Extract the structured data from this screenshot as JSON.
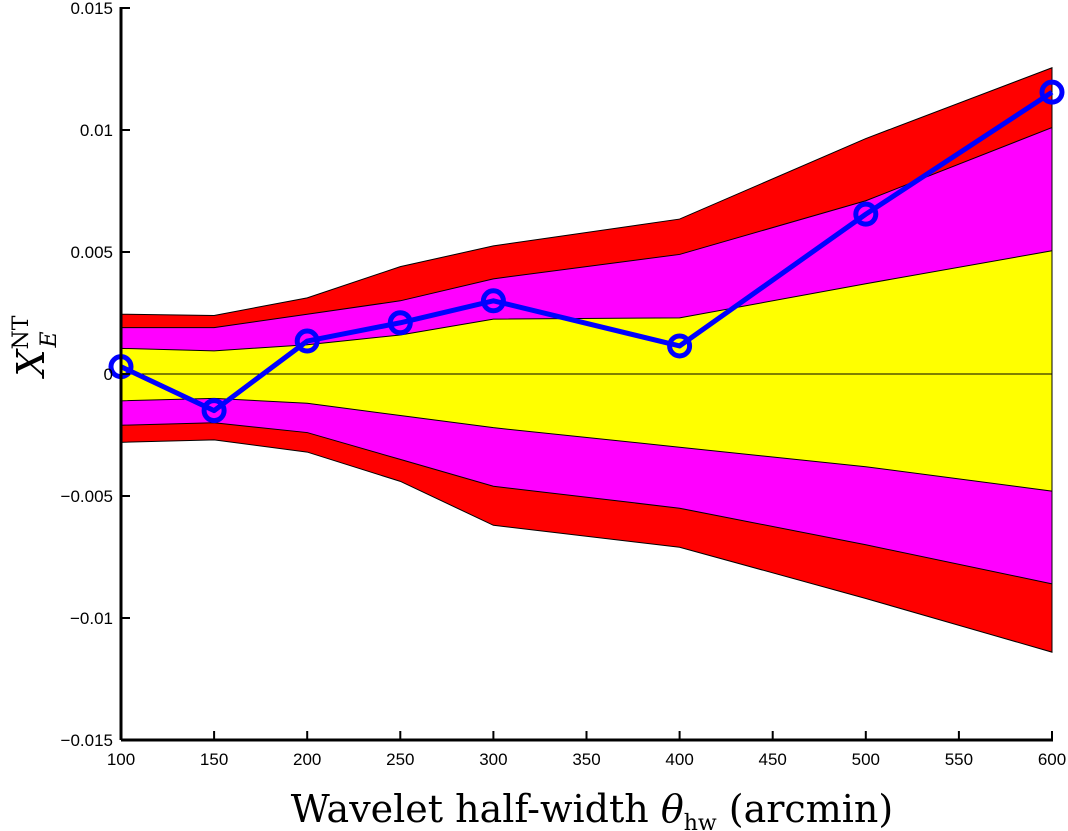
{
  "chart_data": {
    "type": "line",
    "xlabel_main": "Wavelet half-width ",
    "xlabel_symbol": "θ",
    "xlabel_sub": "hw",
    "xlabel_tail": " (arcmin)",
    "ylabel_main": "X",
    "ylabel_sup": "NT",
    "ylabel_sub": "E",
    "xlim": [
      100,
      600
    ],
    "ylim": [
      -0.015,
      0.015
    ],
    "xticks": [
      100,
      150,
      200,
      250,
      300,
      350,
      400,
      450,
      500,
      550,
      600
    ],
    "xtick_labels": [
      "100",
      "150",
      "200",
      "250",
      "300",
      "350",
      "400",
      "450",
      "500",
      "550",
      "600"
    ],
    "yticks": [
      -0.015,
      -0.01,
      -0.005,
      0,
      0.005,
      0.01,
      0.015
    ],
    "ytick_labels": [
      "−0.015",
      "−0.01",
      "−0.005",
      "0",
      "0.005",
      "0.01",
      "0.015"
    ],
    "x": [
      100,
      150,
      200,
      250,
      300,
      400,
      500,
      600
    ],
    "bands": [
      {
        "color": "#ff0000",
        "upper": [
          0.00245,
          0.0024,
          0.00312,
          0.0044,
          0.00525,
          0.00635,
          0.00965,
          0.01255
        ],
        "lower": [
          -0.0028,
          -0.0027,
          -0.0032,
          -0.0044,
          -0.0062,
          -0.0071,
          -0.0092,
          -0.0114
        ]
      },
      {
        "color": "#ff00ff",
        "upper": [
          0.0019,
          0.0019,
          0.00245,
          0.003,
          0.0039,
          0.0049,
          0.0071,
          0.0101
        ],
        "lower": [
          -0.0021,
          -0.002,
          -0.0024,
          -0.0035,
          -0.0046,
          -0.0055,
          -0.007,
          -0.0086
        ]
      },
      {
        "color": "#ffff00",
        "upper": [
          0.00105,
          0.00095,
          0.0012,
          0.0016,
          0.00225,
          0.0023,
          0.0037,
          0.00505
        ],
        "lower": [
          -0.0011,
          -0.001,
          -0.0012,
          -0.0017,
          -0.0022,
          -0.003,
          -0.0038,
          -0.0048
        ]
      }
    ],
    "series": [
      {
        "color": "#0000ff",
        "marker": "circle",
        "values": [
          0.0003,
          -0.0015,
          0.00135,
          0.0021,
          0.003,
          0.00115,
          0.00655,
          0.01155
        ]
      }
    ],
    "zero_line": true,
    "grid": false,
    "legend": "none"
  }
}
